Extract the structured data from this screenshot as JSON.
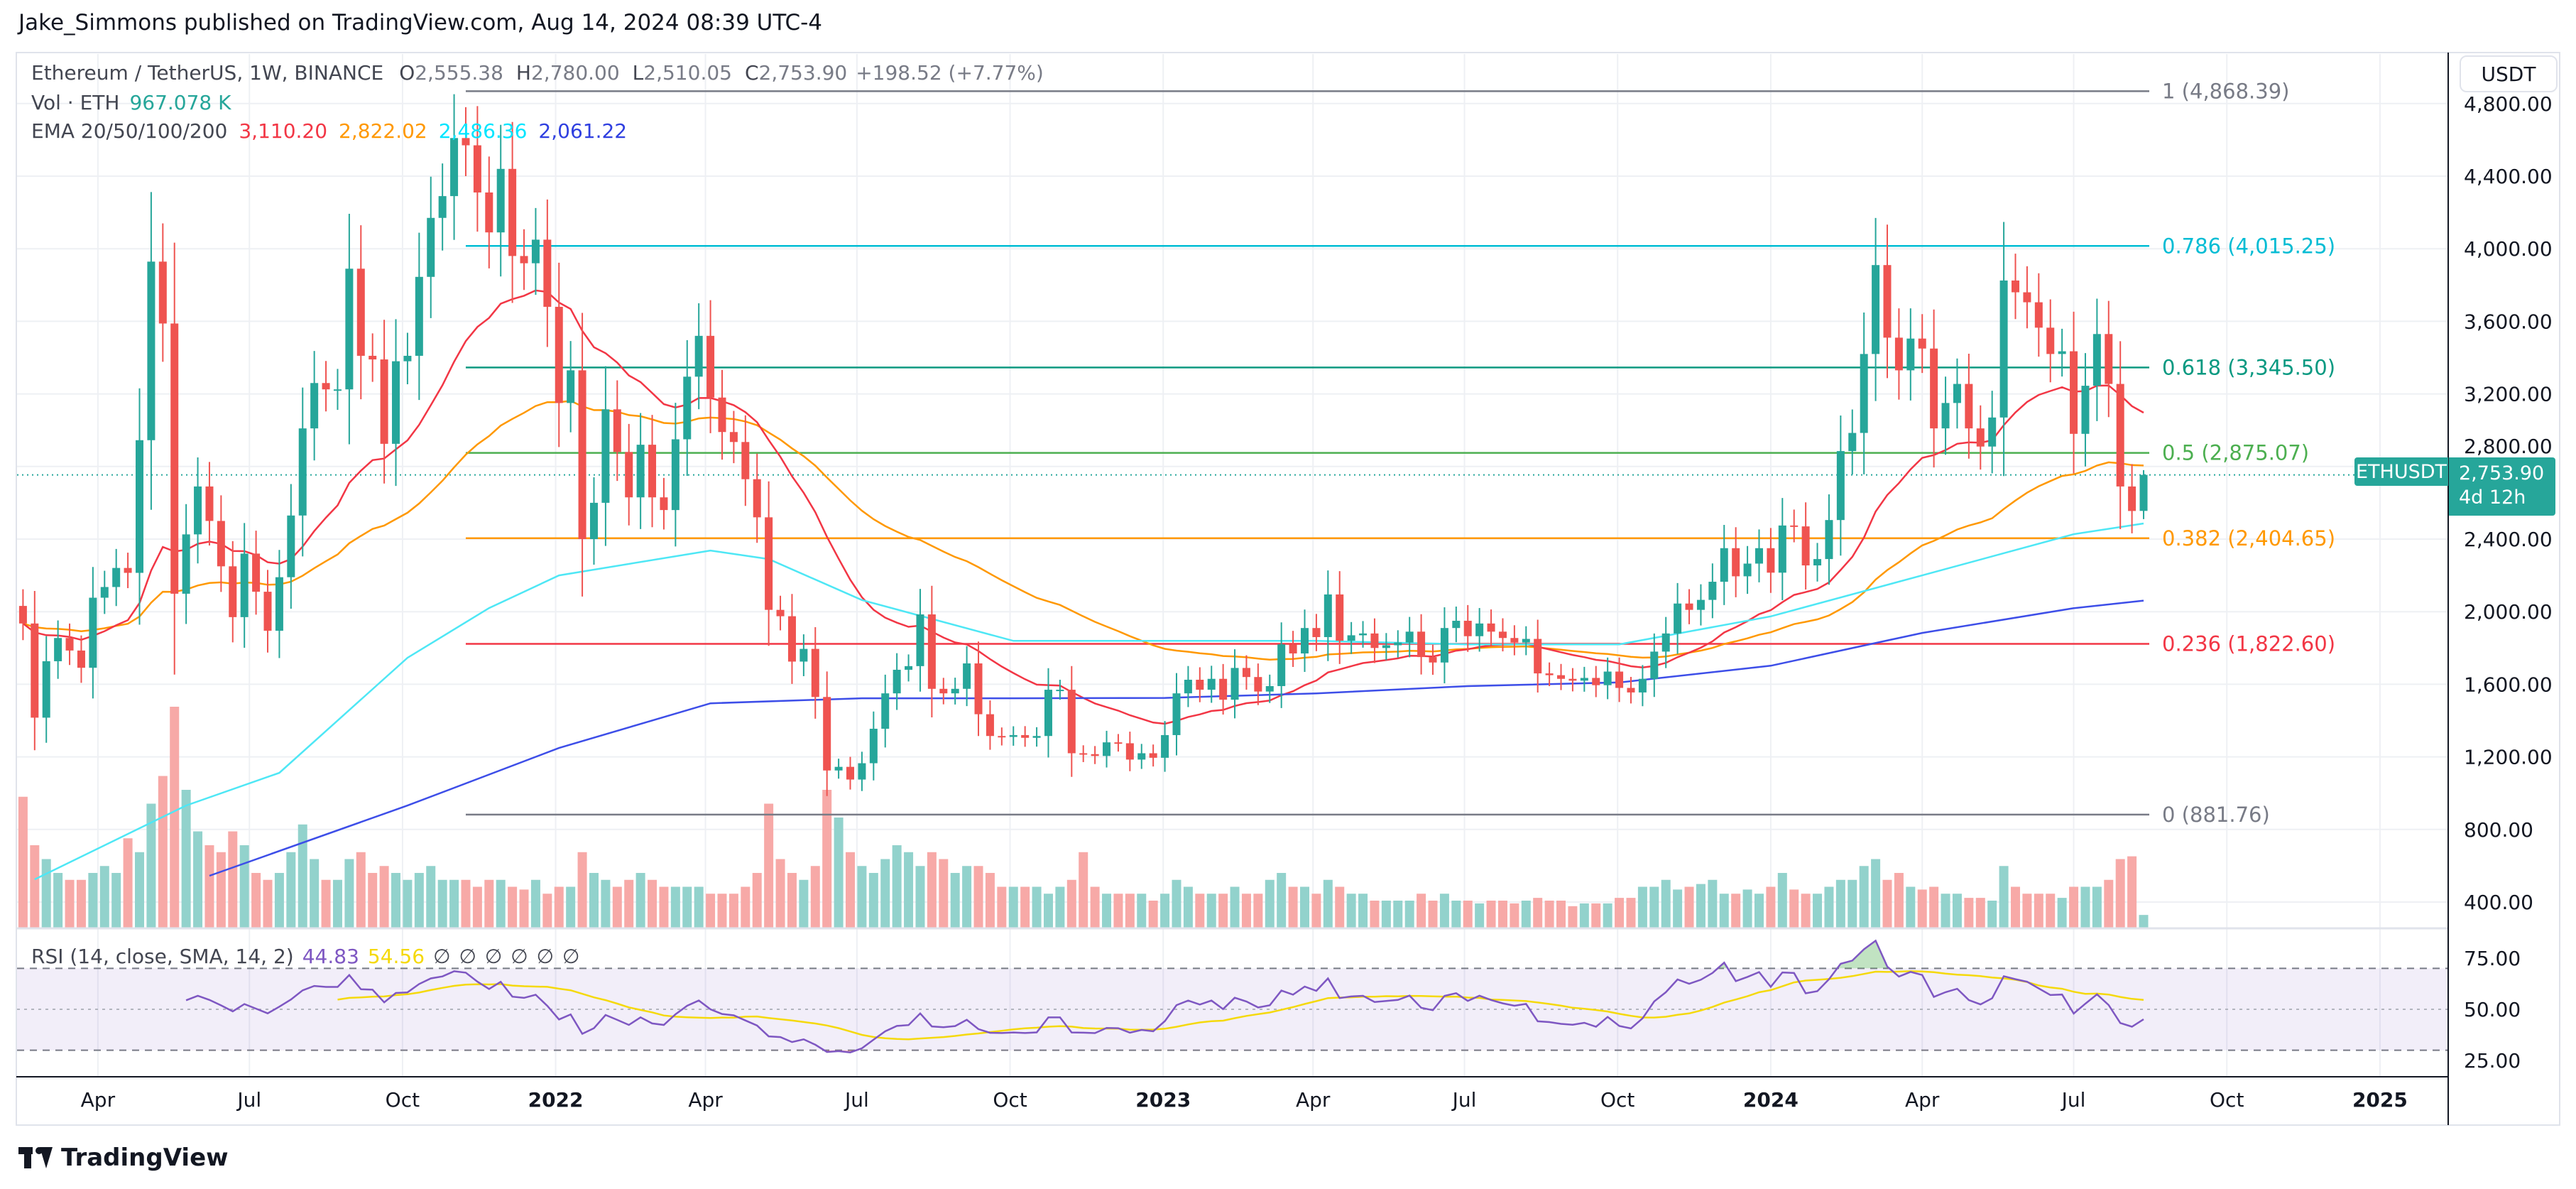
{
  "header": {
    "attribution": "Jake_Simmons published on TradingView.com, Aug 14, 2024 08:39 UTC-4"
  },
  "legend": {
    "symbol": "Ethereum / TetherUS, 1W, BINANCE",
    "o_label": "O",
    "o": "2,555.38",
    "h_label": "H",
    "h": "2,780.00",
    "l_label": "L",
    "l": "2,510.05",
    "c_label": "C",
    "c": "2,753.90",
    "change": "+198.52 (+7.77%)",
    "vol_label": "Vol · ETH",
    "vol": "967.078 K",
    "ema_label": "EMA 20/50/100/200",
    "ema20": "3,110.20",
    "ema50": "2,822.02",
    "ema100": "2,486.36",
    "ema200": "2,061.22"
  },
  "price_axis": {
    "currency": "USDT",
    "ticks": [
      "400.00",
      "800.00",
      "1,200.00",
      "1,600.00",
      "2,000.00",
      "2,400.00",
      "2,800.00",
      "3,200.00",
      "3,600.00",
      "4,000.00",
      "4,400.00",
      "4,800.00"
    ],
    "tick_values": [
      400,
      800,
      1200,
      1600,
      2000,
      2400,
      2800,
      3200,
      3600,
      4000,
      4400,
      4800
    ]
  },
  "last_price": {
    "symbol": "ETHUSDT",
    "price": "2,753.90",
    "value": 2753.9,
    "countdown": "4d 12h"
  },
  "time_axis": [
    {
      "label": "Apr",
      "date": "2021-04-01"
    },
    {
      "label": "Jul",
      "date": "2021-07-01"
    },
    {
      "label": "Oct",
      "date": "2021-10-01"
    },
    {
      "label": "2022",
      "date": "2022-01-01",
      "bold": true
    },
    {
      "label": "Apr",
      "date": "2022-04-01"
    },
    {
      "label": "Jul",
      "date": "2022-07-01"
    },
    {
      "label": "Oct",
      "date": "2022-10-01"
    },
    {
      "label": "2023",
      "date": "2023-01-01",
      "bold": true
    },
    {
      "label": "Apr",
      "date": "2023-04-01"
    },
    {
      "label": "Jul",
      "date": "2023-07-01"
    },
    {
      "label": "Oct",
      "date": "2023-10-01"
    },
    {
      "label": "2024",
      "date": "2024-01-01",
      "bold": true
    },
    {
      "label": "Apr",
      "date": "2024-04-01"
    },
    {
      "label": "Jul",
      "date": "2024-07-01"
    },
    {
      "label": "Oct",
      "date": "2024-10-01"
    },
    {
      "label": "2025",
      "date": "2025-01-01",
      "bold": true
    }
  ],
  "fib_levels": [
    {
      "label": "1 (4,868.39)",
      "price": 4868.39,
      "color": "#787b86"
    },
    {
      "label": "0.786 (4,015.25)",
      "price": 4015.25,
      "color": "#00bcd4"
    },
    {
      "label": "0.618 (3,345.50)",
      "price": 3345.5,
      "color": "#089981"
    },
    {
      "label": "0.5 (2,875.07)",
      "price": 2875.07,
      "color": "#4caf50"
    },
    {
      "label": "0.382 (2,404.65)",
      "price": 2404.65,
      "color": "#ff9800"
    },
    {
      "label": "0.236 (1,822.60)",
      "price": 1822.6,
      "color": "#f23645"
    },
    {
      "label": "0 (881.76)",
      "price": 881.76,
      "color": "#787b86"
    }
  ],
  "fib_start_date": "2021-11-08",
  "rsi": {
    "label": "RSI (14, close, SMA, 14, 2)",
    "value": "44.83",
    "sma": "54.56",
    "na": [
      "∅",
      "∅",
      "∅",
      "∅",
      "∅",
      "∅"
    ],
    "ticks": [
      "75.00",
      "50.00",
      "25.00"
    ],
    "tick_values": [
      75,
      50,
      25
    ],
    "color": "#7e57c2",
    "sma_color": "#f5d90a"
  },
  "colors": {
    "up": "#26a69a",
    "down": "#ef5350",
    "vol_up": "#92d2cc",
    "vol_down": "#f7a9a7",
    "ema20": "#f23645",
    "ema50": "#ff9800",
    "ema100": "#4ee7f5",
    "ema200": "#3d4ee8"
  },
  "footer": {
    "brand": "TradingView"
  },
  "chart_data": {
    "type": "candlestick",
    "interval": "1W",
    "first_week": "2021-02-15",
    "last_candle": {
      "o": 2555.38,
      "h": 2780.0,
      "l": 2510.05,
      "c": 2753.9
    },
    "close": [
      1935,
      1416,
      1727,
      1855,
      1786,
      1691,
      2077,
      2136,
      2241,
      2214,
      2945,
      3929,
      3588,
      2099,
      2426,
      2690,
      2500,
      2250,
      1970,
      2320,
      2110,
      1895,
      2190,
      2530,
      3010,
      3260,
      3225,
      3225,
      3890,
      3410,
      3390,
      2925,
      3380,
      3410,
      3845,
      4170,
      4290,
      4610,
      4570,
      4310,
      4090,
      4440,
      3960,
      3920,
      4050,
      3680,
      3150,
      3330,
      2400,
      2600,
      3115,
      2880,
      2630,
      2920,
      2630,
      2560,
      2950,
      3295,
      3520,
      3180,
      2990,
      2935,
      2730,
      2520,
      2010,
      1975,
      1725,
      1795,
      1530,
      1125,
      1145,
      1075,
      1165,
      1355,
      1550,
      1680,
      1700,
      1985,
      1575,
      1550,
      1575,
      1715,
      1435,
      1315,
      1310,
      1320,
      1305,
      1315,
      1570,
      1570,
      1220,
      1215,
      1205,
      1280,
      1275,
      1185,
      1220,
      1195,
      1320,
      1550,
      1625,
      1570,
      1630,
      1515,
      1690,
      1640,
      1560,
      1590,
      1820,
      1770,
      1910,
      1860,
      2095,
      1840,
      1870,
      1880,
      1800,
      1815,
      1830,
      1890,
      1750,
      1720,
      1910,
      1950,
      1865,
      1935,
      1890,
      1855,
      1830,
      1850,
      1660,
      1650,
      1630,
      1620,
      1635,
      1595,
      1670,
      1580,
      1555,
      1630,
      1780,
      1880,
      2045,
      2010,
      2065,
      2165,
      2350,
      2195,
      2265,
      2350,
      2215,
      2475,
      2470,
      2255,
      2290,
      2505,
      2885,
      2985,
      3420,
      3910,
      3510,
      3330,
      3505,
      3450,
      3010,
      3150,
      3255,
      3010,
      2910,
      3070,
      3825,
      3760,
      3705,
      3565,
      3420,
      3435,
      2980,
      3245,
      3530,
      3255,
      2690,
      2555,
      2753.9
    ],
    "volume_millions_eth": [
      9.5,
      6.0,
      5.0,
      4.0,
      3.5,
      3.5,
      4.0,
      4.5,
      4.0,
      6.5,
      5.5,
      9.0,
      11.0,
      16.0,
      10.0,
      7.0,
      6.0,
      5.5,
      7.0,
      6.0,
      4.0,
      3.5,
      4.0,
      5.5,
      7.5,
      5.0,
      3.5,
      3.5,
      5.0,
      5.5,
      4.0,
      4.5,
      4.0,
      3.5,
      4.0,
      4.5,
      3.5,
      3.5,
      3.5,
      3.0,
      3.5,
      3.5,
      3.0,
      2.8,
      3.5,
      2.5,
      3.0,
      3.0,
      5.5,
      4.0,
      3.5,
      3.0,
      3.5,
      4.0,
      3.5,
      3.0,
      3.0,
      3.0,
      3.0,
      2.5,
      2.5,
      2.5,
      3.0,
      4.0,
      9.0,
      5.0,
      4.0,
      3.5,
      4.5,
      10.0,
      8.0,
      5.5,
      4.5,
      4.0,
      5.0,
      6.0,
      5.5,
      4.5,
      5.5,
      5.0,
      4.0,
      4.5,
      4.5,
      4.0,
      3.0,
      3.0,
      3.0,
      3.0,
      2.5,
      3.0,
      3.5,
      5.5,
      3.0,
      2.5,
      2.5,
      2.5,
      2.5,
      2.0,
      2.5,
      3.5,
      3.0,
      2.5,
      2.5,
      2.5,
      3.0,
      2.5,
      2.5,
      3.5,
      4.0,
      3.0,
      3.0,
      2.5,
      3.5,
      3.0,
      2.5,
      2.5,
      2.0,
      2.0,
      2.0,
      2.0,
      2.5,
      2.0,
      2.5,
      2.0,
      2.0,
      1.8,
      2.0,
      2.0,
      1.8,
      2.0,
      2.2,
      2.0,
      2.0,
      1.6,
      1.8,
      1.8,
      1.8,
      2.2,
      2.2,
      3.0,
      3.0,
      3.5,
      2.8,
      3.0,
      3.2,
      3.5,
      2.5,
      2.5,
      2.8,
      2.5,
      3.0,
      4.0,
      2.8,
      2.5,
      2.5,
      3.0,
      3.5,
      3.5,
      4.5,
      5.0,
      3.5,
      4.0,
      3.0,
      2.8,
      3.0,
      2.5,
      2.5,
      2.2,
      2.2,
      2.0,
      4.5,
      3.0,
      2.5,
      2.5,
      2.5,
      2.2,
      3.0,
      3.0,
      3.0,
      3.5,
      5.0,
      5.2,
      0.967
    ],
    "ema100_points": [
      [
        "2021-02-22",
        525
      ],
      [
        "2021-05-24",
        932
      ],
      [
        "2021-07-19",
        1112
      ],
      [
        "2021-10-04",
        1746
      ],
      [
        "2021-11-22",
        2020
      ],
      [
        "2022-01-03",
        2200
      ],
      [
        "2022-04-04",
        2337
      ],
      [
        "2022-05-09",
        2290
      ],
      [
        "2022-07-04",
        2064
      ],
      [
        "2022-10-03",
        1839
      ],
      [
        "2023-01-02",
        1839
      ],
      [
        "2023-04-03",
        1839
      ],
      [
        "2023-07-03",
        1820
      ],
      [
        "2023-10-02",
        1820
      ],
      [
        "2024-01-01",
        1974
      ],
      [
        "2024-04-01",
        2200
      ],
      [
        "2024-07-01",
        2427
      ],
      [
        "2024-08-12",
        2486
      ]
    ],
    "ema200_points": [
      [
        "2021-06-07",
        545
      ],
      [
        "2021-10-04",
        932
      ],
      [
        "2022-01-03",
        1249
      ],
      [
        "2022-04-04",
        1495
      ],
      [
        "2022-07-04",
        1523
      ],
      [
        "2022-10-03",
        1523
      ],
      [
        "2023-01-02",
        1525
      ],
      [
        "2023-04-03",
        1550
      ],
      [
        "2023-07-03",
        1590
      ],
      [
        "2023-10-02",
        1610
      ],
      [
        "2024-01-01",
        1702
      ],
      [
        "2024-04-01",
        1883
      ],
      [
        "2024-07-01",
        2019
      ],
      [
        "2024-08-12",
        2061
      ]
    ]
  }
}
